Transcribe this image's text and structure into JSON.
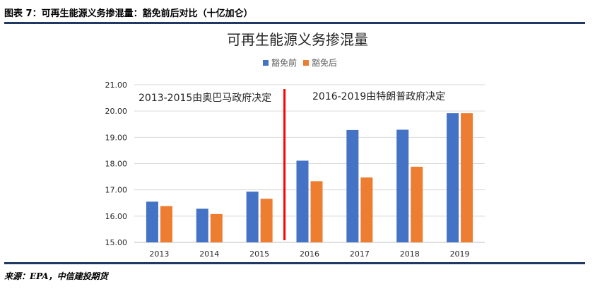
{
  "figure_caption": "图表 7：可再生能源义务掺混量：豁免前后对比（十亿加仑）",
  "source_note": "来源：EPA，中信建投期货",
  "colors": {
    "series_before": "#4472c4",
    "series_after": "#ed7d31",
    "divider": "#ff0000",
    "rule": "#1f3864",
    "grid": "#d9d9d9"
  },
  "chart_data": {
    "type": "bar",
    "title": "可再生能源义务掺混量",
    "categories": [
      "2013",
      "2014",
      "2015",
      "2016",
      "2017",
      "2018",
      "2019"
    ],
    "series": [
      {
        "name": "豁免前",
        "values": [
          16.55,
          16.28,
          16.93,
          18.11,
          19.28,
          19.29,
          19.92
        ]
      },
      {
        "name": "豁免后",
        "values": [
          16.38,
          16.08,
          16.66,
          17.33,
          17.47,
          17.88,
          19.92
        ]
      }
    ],
    "ylim": [
      15.0,
      21.0
    ],
    "yticks": [
      "15.00",
      "16.00",
      "17.00",
      "18.00",
      "19.00",
      "20.00",
      "21.00"
    ],
    "grid": true,
    "legend": "top-center",
    "annotations": [
      "2013-2015由奥巴马政府决定",
      "2016-2019由特朗普政府决定"
    ],
    "divider_between": [
      "2015",
      "2016"
    ]
  }
}
